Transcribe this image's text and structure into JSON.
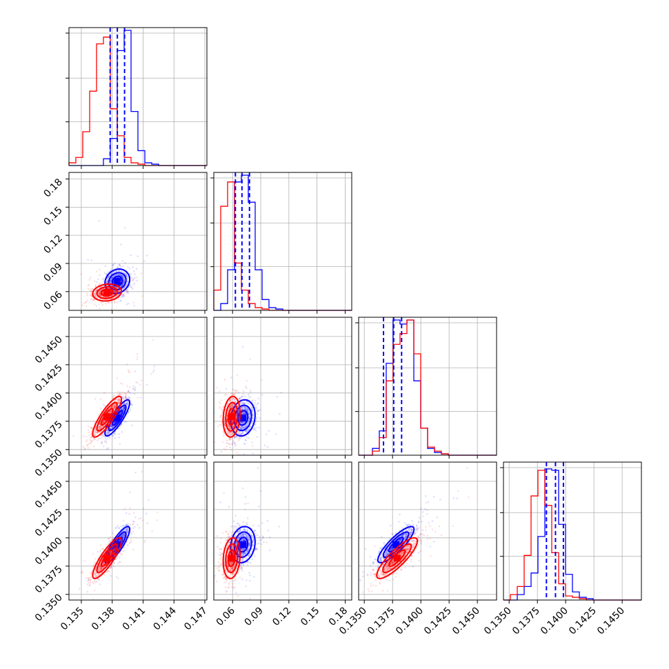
{
  "chart_data": {
    "type": "corner",
    "grid": true,
    "colors": {
      "blue": "#0000ff",
      "red": "#ff0000"
    },
    "parameters": 4,
    "axes_ticks": {
      "p1": [
        "0.135",
        "0.138",
        "0.141",
        "0.144",
        "0.147"
      ],
      "p2": [
        "0.06",
        "0.09",
        "0.12",
        "0.15",
        "0.18"
      ],
      "p3": [
        "0.1350",
        "0.1375",
        "0.1400",
        "0.1425",
        "0.1450"
      ],
      "p4": [
        "0.1350",
        "0.1375",
        "0.1400",
        "0.1425",
        "0.1450"
      ]
    },
    "ranges": {
      "p1": [
        0.1338,
        0.1472
      ],
      "p2": [
        0.04,
        0.187
      ],
      "p3": [
        0.1345,
        0.1467
      ],
      "p4": [
        0.1345,
        0.1467
      ]
    },
    "tick_values": {
      "p1": [
        0.135,
        0.138,
        0.141,
        0.144,
        0.147
      ],
      "p2": [
        0.06,
        0.09,
        0.12,
        0.15,
        0.18
      ],
      "p3": [
        0.135,
        0.1375,
        0.14,
        0.1425,
        0.145
      ],
      "p4": [
        0.135,
        0.1375,
        0.14,
        0.1425,
        0.145
      ]
    },
    "series": [
      {
        "color": "#0000ff",
        "quantiles": {
          "p1": [
            0.1378,
            0.1385,
            0.1392
          ],
          "p2": [
            0.063,
            0.07,
            0.078
          ],
          "p3": [
            0.1367,
            0.1376,
            0.1383
          ],
          "p4": [
            0.1383,
            0.1391,
            0.1398
          ]
        },
        "means": {
          "p1": 0.1385,
          "p2": 0.071,
          "p3": 0.1378,
          "p4": 0.1394
        },
        "sds": {
          "p1": 0.0006,
          "p2": 0.0065,
          "p3": 0.0008,
          "p4": 0.0008
        },
        "hist": {
          "p1": [
            0,
            0,
            0,
            0,
            0,
            0.05,
            0.2,
            0.85,
            1,
            0.4,
            0.11,
            0.02,
            0.01,
            0,
            0,
            0,
            0,
            0,
            0,
            0
          ],
          "p2": [
            0,
            0.05,
            0.3,
            0.95,
            1,
            0.8,
            0.3,
            0.08,
            0.02,
            0.01,
            0,
            0,
            0,
            0,
            0,
            0,
            0,
            0,
            0,
            0
          ],
          "p3": [
            0,
            0,
            0.05,
            0.18,
            0.68,
            1,
            0.97,
            1,
            0.55,
            0.2,
            0.05,
            0.02,
            0.01,
            0,
            0,
            0,
            0,
            0,
            0,
            0
          ],
          "p4": [
            0,
            0,
            0.04,
            0.1,
            0.2,
            0.47,
            0.97,
            0.96,
            0.56,
            0.19,
            0.06,
            0.02,
            0.01,
            0,
            0,
            0,
            0,
            0,
            0,
            0
          ]
        }
      },
      {
        "color": "#ff0000",
        "means": {
          "p1": 0.1375,
          "p2": 0.059,
          "p3": 0.1379,
          "p4": 0.1382
        },
        "sds": {
          "p1": 0.0007,
          "p2": 0.0045,
          "p3": 0.0009,
          "p4": 0.0009
        },
        "hist": {
          "p1": [
            0.02,
            0.06,
            0.25,
            0.55,
            0.9,
            0.95,
            0.42,
            0.22,
            0.06,
            0.02,
            0.01,
            0,
            0,
            0,
            0,
            0,
            0,
            0,
            0,
            0
          ],
          "p2": [
            0.15,
            0.77,
            0.95,
            0.35,
            0.15,
            0.05,
            0.02,
            0.01,
            0,
            0,
            0,
            0,
            0,
            0,
            0,
            0,
            0,
            0,
            0,
            0
          ],
          "p3": [
            0,
            0,
            0.03,
            0.13,
            0.55,
            0.82,
            0.9,
            1,
            0.75,
            0.2,
            0.06,
            0.03,
            0.01,
            0,
            0,
            0,
            0,
            0,
            0,
            0
          ],
          "p4": [
            0,
            0.04,
            0.1,
            0.33,
            0.77,
            0.96,
            0.7,
            0.35,
            0.12,
            0.03,
            0.02,
            0.01,
            0,
            0,
            0,
            0,
            0,
            0,
            0,
            0
          ]
        }
      }
    ]
  }
}
